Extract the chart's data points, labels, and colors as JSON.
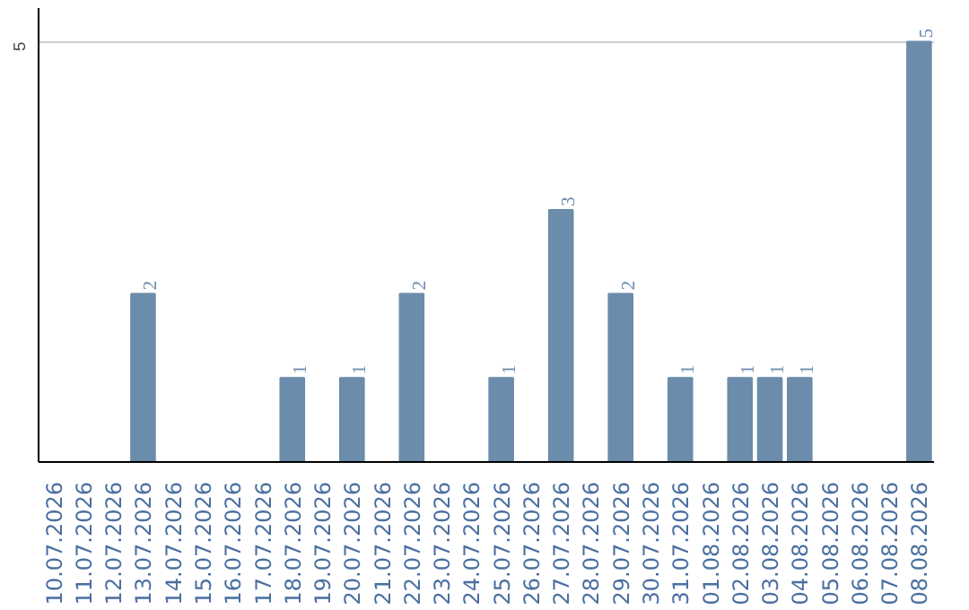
{
  "chart_data": {
    "type": "bar",
    "categories": [
      "10.07.2026",
      "11.07.2026",
      "12.07.2026",
      "13.07.2026",
      "14.07.2026",
      "15.07.2026",
      "16.07.2026",
      "17.07.2026",
      "18.07.2026",
      "19.07.2026",
      "20.07.2026",
      "21.07.2026",
      "22.07.2026",
      "23.07.2026",
      "24.07.2026",
      "25.07.2026",
      "26.07.2026",
      "27.07.2026",
      "28.07.2026",
      "29.07.2026",
      "30.07.2026",
      "31.07.2026",
      "01.08.2026",
      "02.08.2026",
      "03.08.2026",
      "04.08.2026",
      "05.08.2026",
      "06.08.2026",
      "07.08.2026",
      "08.08.2026"
    ],
    "values": [
      0,
      0,
      0,
      2,
      0,
      0,
      0,
      0,
      1,
      0,
      1,
      0,
      2,
      0,
      0,
      1,
      0,
      3,
      0,
      2,
      0,
      1,
      0,
      1,
      1,
      1,
      0,
      0,
      0,
      5
    ],
    "value_labels": [
      null,
      null,
      null,
      "2",
      null,
      null,
      null,
      null,
      "1",
      null,
      "1",
      null,
      "2",
      null,
      null,
      "1",
      null,
      "3",
      null,
      "2",
      null,
      "1",
      null,
      "1",
      "1",
      "1",
      null,
      null,
      null,
      "5"
    ],
    "color": "#6b8cab",
    "ylim": [
      0,
      5.4
    ],
    "yticks": [
      5
    ],
    "grid": "y"
  }
}
